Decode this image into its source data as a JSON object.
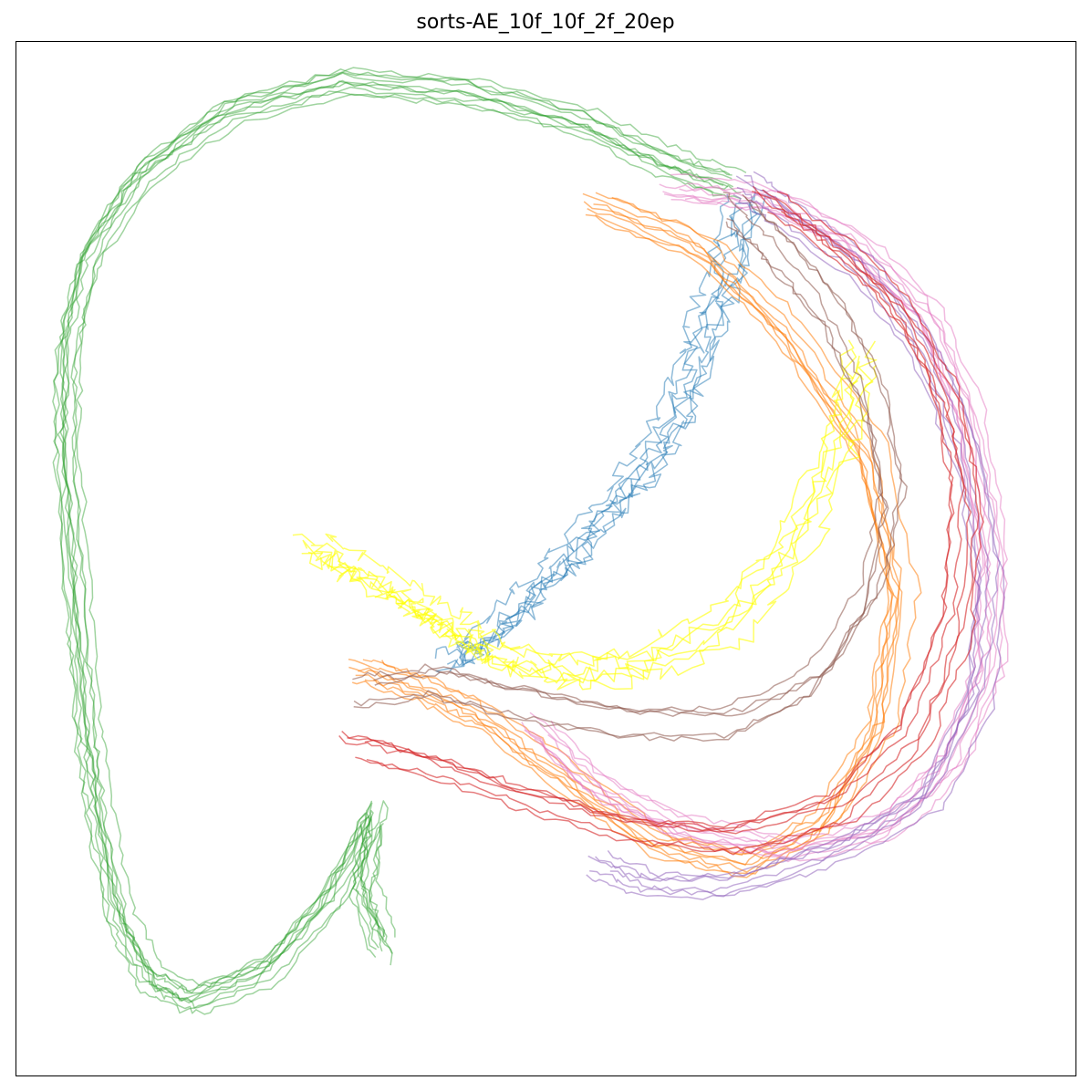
{
  "chart_data": {
    "type": "line",
    "title": "sorts-AE_10f_10f_2f_20ep",
    "xlabel": "",
    "ylabel": "",
    "grid": false,
    "legend": "none",
    "xlim": [
      0,
      100
    ],
    "ylim": [
      0,
      100
    ],
    "series": [
      {
        "color": "#2ca02c",
        "opacity": 0.45,
        "trajectories": 10,
        "points": [
          [
            35,
            12
          ],
          [
            33,
            18
          ],
          [
            34,
            25
          ],
          [
            30,
            17
          ],
          [
            24,
            10
          ],
          [
            17,
            7
          ],
          [
            13,
            9
          ],
          [
            10,
            15
          ],
          [
            8,
            25
          ],
          [
            7,
            33
          ],
          [
            6,
            45
          ],
          [
            5,
            60
          ],
          [
            5,
            70
          ],
          [
            7,
            79
          ],
          [
            12,
            87
          ],
          [
            20,
            93
          ],
          [
            31,
            96
          ],
          [
            43,
            95
          ],
          [
            54,
            92
          ],
          [
            62,
            88
          ],
          [
            68,
            86
          ]
        ]
      },
      {
        "color": "#1f77b4",
        "opacity": 0.5,
        "trajectories": 6,
        "points": [
          [
            69,
            85
          ],
          [
            67,
            78
          ],
          [
            65,
            72
          ],
          [
            63,
            66
          ],
          [
            60,
            60
          ],
          [
            56,
            55
          ],
          [
            52,
            50
          ],
          [
            48,
            46
          ],
          [
            44,
            42
          ],
          [
            41,
            40
          ]
        ]
      },
      {
        "color": "#ff7f0e",
        "opacity": 0.55,
        "trajectories": 8,
        "points": [
          [
            33,
            39
          ],
          [
            39,
            37
          ],
          [
            45,
            34
          ],
          [
            53,
            28
          ],
          [
            61,
            22
          ],
          [
            70,
            20
          ],
          [
            77,
            24
          ],
          [
            82,
            33
          ],
          [
            84,
            46
          ],
          [
            81,
            60
          ],
          [
            73,
            72
          ],
          [
            65,
            80
          ],
          [
            55,
            84
          ]
        ]
      },
      {
        "color": "#ffff00",
        "opacity": 0.6,
        "trajectories": 6,
        "points": [
          [
            28,
            51
          ],
          [
            32,
            49
          ],
          [
            37,
            46
          ],
          [
            40,
            44
          ],
          [
            43,
            42
          ],
          [
            47,
            40
          ],
          [
            53,
            39
          ],
          [
            60,
            40
          ],
          [
            68,
            44
          ],
          [
            74,
            52
          ],
          [
            78,
            62
          ],
          [
            80,
            70
          ]
        ]
      },
      {
        "color": "#e377c2",
        "opacity": 0.5,
        "trajectories": 8,
        "points": [
          [
            49,
            34
          ],
          [
            55,
            28
          ],
          [
            63,
            24
          ],
          [
            73,
            22
          ],
          [
            82,
            24
          ],
          [
            88,
            30
          ],
          [
            92,
            40
          ],
          [
            92,
            52
          ],
          [
            90,
            64
          ],
          [
            86,
            74
          ],
          [
            79,
            81
          ],
          [
            71,
            85
          ],
          [
            62,
            86
          ]
        ]
      },
      {
        "color": "#9467bd",
        "opacity": 0.55,
        "trajectories": 6,
        "points": [
          [
            55,
            20
          ],
          [
            60,
            18
          ],
          [
            68,
            18
          ],
          [
            77,
            21
          ],
          [
            86,
            26
          ],
          [
            91,
            36
          ],
          [
            92,
            48
          ],
          [
            90,
            60
          ],
          [
            86,
            70
          ],
          [
            80,
            78
          ],
          [
            73,
            83
          ],
          [
            69,
            86
          ]
        ]
      },
      {
        "color": "#8c564b",
        "opacity": 0.55,
        "trajectories": 5,
        "points": [
          [
            33,
            37
          ],
          [
            40,
            38
          ],
          [
            48,
            36
          ],
          [
            58,
            34
          ],
          [
            68,
            34
          ],
          [
            76,
            38
          ],
          [
            81,
            46
          ],
          [
            83,
            56
          ],
          [
            81,
            66
          ],
          [
            77,
            74
          ],
          [
            72,
            80
          ],
          [
            68,
            84
          ]
        ]
      },
      {
        "color": "#d62728",
        "opacity": 0.6,
        "trajectories": 6,
        "points": [
          [
            32,
            32
          ],
          [
            40,
            30
          ],
          [
            48,
            27
          ],
          [
            58,
            24
          ],
          [
            68,
            23
          ],
          [
            78,
            26
          ],
          [
            85,
            33
          ],
          [
            89,
            44
          ],
          [
            90,
            56
          ],
          [
            88,
            66
          ],
          [
            84,
            74
          ],
          [
            78,
            80
          ],
          [
            71,
            85
          ]
        ]
      }
    ]
  }
}
